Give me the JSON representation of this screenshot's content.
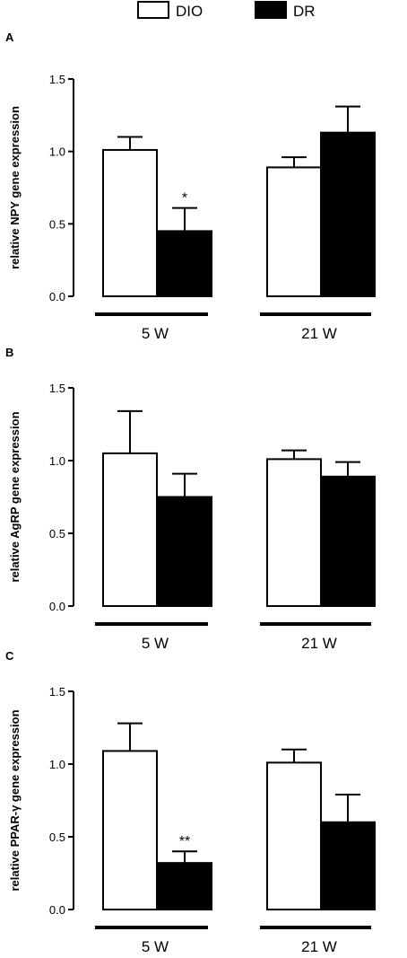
{
  "legend": [
    {
      "label": "DIO",
      "fill": "#ffffff"
    },
    {
      "label": "DR",
      "fill": "#000000"
    }
  ],
  "chart_data": [
    {
      "type": "bar",
      "panel": "A",
      "ylabel": "relative NPY gene expression",
      "ylim": [
        0,
        1.5
      ],
      "yticks": [
        "0.0",
        "0.5",
        "1.0",
        "1.5"
      ],
      "groups": [
        "5 W",
        "21 W"
      ],
      "series": [
        {
          "name": "DIO",
          "values": [
            1.01,
            0.89
          ],
          "errors": [
            0.09,
            0.07
          ],
          "significance": [
            "",
            ""
          ]
        },
        {
          "name": "DR",
          "values": [
            0.45,
            1.13
          ],
          "errors": [
            0.16,
            0.18
          ],
          "significance": [
            "*",
            ""
          ]
        }
      ]
    },
    {
      "type": "bar",
      "panel": "B",
      "ylabel": "relative AgRP gene expression",
      "ylim": [
        0,
        1.5
      ],
      "yticks": [
        "0.0",
        "0.5",
        "1.0",
        "1.5"
      ],
      "groups": [
        "5 W",
        "21 W"
      ],
      "series": [
        {
          "name": "DIO",
          "values": [
            1.05,
            1.01
          ],
          "errors": [
            0.29,
            0.06
          ],
          "significance": [
            "",
            ""
          ]
        },
        {
          "name": "DR",
          "values": [
            0.75,
            0.89
          ],
          "errors": [
            0.16,
            0.1
          ],
          "significance": [
            "",
            ""
          ]
        }
      ]
    },
    {
      "type": "bar",
      "panel": "C",
      "ylabel": "relative PPAR-γ gene expression",
      "ylim": [
        0,
        1.5
      ],
      "yticks": [
        "0.0",
        "0.5",
        "1.0",
        "1.5"
      ],
      "groups": [
        "5 W",
        "21 W"
      ],
      "series": [
        {
          "name": "DIO",
          "values": [
            1.09,
            1.01
          ],
          "errors": [
            0.19,
            0.09
          ],
          "significance": [
            "",
            ""
          ]
        },
        {
          "name": "DR",
          "values": [
            0.32,
            0.6
          ],
          "errors": [
            0.08,
            0.19
          ],
          "significance": [
            "**",
            ""
          ]
        }
      ]
    }
  ]
}
